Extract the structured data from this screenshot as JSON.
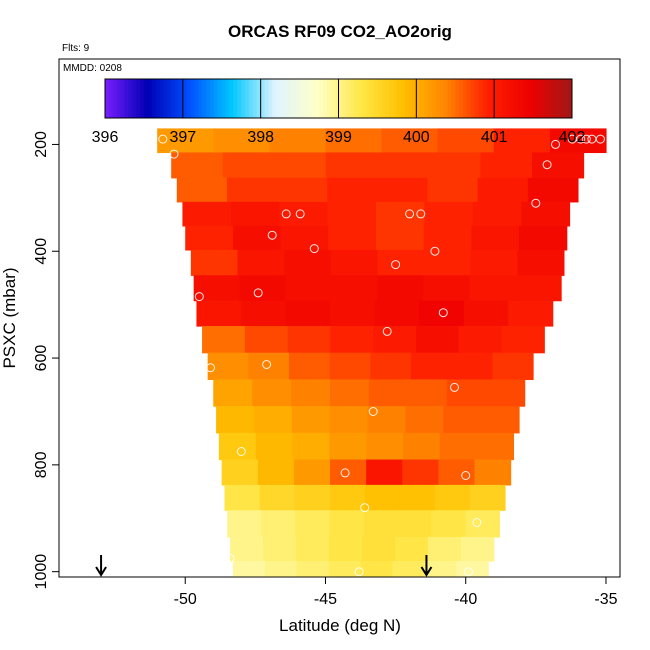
{
  "chart_data": {
    "type": "heatmap",
    "title": "ORCAS RF09 CO2_AO2orig",
    "flights_label": "Flts: 9",
    "date_label": "MMDD: 0208",
    "xlabel": "Latitude (deg N)",
    "ylabel": "PSXC (mbar)",
    "xlim": [
      -54.5,
      -34.5
    ],
    "ylim": [
      1010,
      40
    ],
    "xticks": [
      "-50",
      "-45",
      "-40",
      "-35"
    ],
    "yticks": [
      "200",
      "400",
      "600",
      "800",
      "1000"
    ],
    "colorbar": {
      "min": 396,
      "max": 402,
      "ticks": [
        "396",
        "397",
        "398",
        "399",
        "400",
        "401",
        "402"
      ],
      "colors": [
        "#7a1fff",
        "#0000b4",
        "#0050ff",
        "#00c8ff",
        "#dff4ff",
        "#ffffc8",
        "#ffe84a",
        "#ffc000",
        "#ff8800",
        "#ff2000",
        "#ee0000",
        "#a01818"
      ]
    },
    "layers": [
      {
        "p": 190,
        "lat_min": -51.0,
        "lat_max": -35.0,
        "values": [
          400.2,
          400.3,
          400.4,
          400.5,
          400.6,
          400.7,
          400.9,
          401.3
        ]
      },
      {
        "p": 240,
        "lat_min": -50.5,
        "lat_max": -35.8,
        "values": [
          400.6,
          400.7,
          400.7,
          400.8,
          400.8,
          400.8,
          400.9,
          401.2
        ]
      },
      {
        "p": 285,
        "lat_min": -50.3,
        "lat_max": -36.0,
        "values": [
          400.6,
          400.8,
          400.8,
          400.9,
          400.9,
          400.8,
          401.0,
          401.3
        ]
      },
      {
        "p": 330,
        "lat_min": -50.1,
        "lat_max": -36.3,
        "values": [
          401.0,
          401.1,
          401.0,
          400.9,
          400.8,
          400.9,
          401.0,
          401.2
        ]
      },
      {
        "p": 375,
        "lat_min": -50.0,
        "lat_max": -36.4,
        "values": [
          400.9,
          401.2,
          401.1,
          400.9,
          400.8,
          400.9,
          401.1,
          401.3
        ]
      },
      {
        "p": 420,
        "lat_min": -49.8,
        "lat_max": -36.5,
        "values": [
          400.8,
          401.1,
          401.2,
          401.1,
          400.9,
          400.9,
          401.0,
          401.2
        ]
      },
      {
        "p": 470,
        "lat_min": -49.7,
        "lat_max": -36.6,
        "values": [
          401.2,
          401.3,
          401.2,
          401.2,
          401.3,
          401.2,
          401.1,
          401.1
        ]
      },
      {
        "p": 515,
        "lat_min": -49.6,
        "lat_max": -36.9,
        "values": [
          401.1,
          401.2,
          401.3,
          401.2,
          401.3,
          401.4,
          401.2,
          401.0
        ]
      },
      {
        "p": 565,
        "lat_min": -49.4,
        "lat_max": -37.2,
        "values": [
          400.5,
          400.7,
          400.8,
          400.9,
          401.0,
          401.2,
          401.0,
          400.9
        ]
      },
      {
        "p": 615,
        "lat_min": -49.2,
        "lat_max": -37.6,
        "values": [
          400.3,
          400.4,
          400.6,
          400.7,
          400.8,
          400.9,
          400.9,
          400.8
        ]
      },
      {
        "p": 665,
        "lat_min": -49.0,
        "lat_max": -37.9,
        "values": [
          400.1,
          400.3,
          400.4,
          400.5,
          400.6,
          400.6,
          400.7,
          400.7
        ]
      },
      {
        "p": 715,
        "lat_min": -48.9,
        "lat_max": -38.1,
        "values": [
          399.9,
          400.0,
          400.2,
          400.3,
          400.4,
          400.5,
          400.6,
          400.6
        ]
      },
      {
        "p": 765,
        "lat_min": -48.8,
        "lat_max": -38.3,
        "values": [
          399.7,
          399.9,
          400.0,
          400.2,
          400.3,
          400.4,
          400.5,
          400.5
        ]
      },
      {
        "p": 815,
        "lat_min": -48.7,
        "lat_max": -38.4,
        "values": [
          399.6,
          399.9,
          400.2,
          400.6,
          401.1,
          400.8,
          400.6,
          400.4
        ]
      },
      {
        "p": 860,
        "lat_min": -48.6,
        "lat_max": -38.6,
        "values": [
          399.3,
          399.5,
          399.6,
          399.7,
          399.8,
          399.8,
          399.7,
          399.6
        ]
      },
      {
        "p": 910,
        "lat_min": -48.5,
        "lat_max": -38.8,
        "values": [
          399.0,
          399.1,
          399.2,
          399.3,
          399.4,
          399.4,
          399.3,
          399.2
        ]
      },
      {
        "p": 960,
        "lat_min": -48.4,
        "lat_max": -39.0,
        "values": [
          399.0,
          399.1,
          399.2,
          399.3,
          399.4,
          399.3,
          399.1,
          399.0
        ]
      },
      {
        "p": 1000,
        "lat_min": -48.3,
        "lat_max": -39.2,
        "values": [
          398.9,
          399.0,
          399.1,
          399.2,
          399.3,
          399.2,
          399.0,
          398.9
        ]
      }
    ],
    "observations": [
      {
        "lat": -50.8,
        "p": 190
      },
      {
        "lat": -50.4,
        "p": 218
      },
      {
        "lat": -36.8,
        "p": 200
      },
      {
        "lat": -36.2,
        "p": 190
      },
      {
        "lat": -35.7,
        "p": 190
      },
      {
        "lat": -35.5,
        "p": 190
      },
      {
        "lat": -35.2,
        "p": 190
      },
      {
        "lat": -35.9,
        "p": 190
      },
      {
        "lat": -37.1,
        "p": 238
      },
      {
        "lat": -37.5,
        "p": 310
      },
      {
        "lat": -46.4,
        "p": 330
      },
      {
        "lat": -45.9,
        "p": 330
      },
      {
        "lat": -42.0,
        "p": 330
      },
      {
        "lat": -41.6,
        "p": 330
      },
      {
        "lat": -46.9,
        "p": 370
      },
      {
        "lat": -45.4,
        "p": 395
      },
      {
        "lat": -41.1,
        "p": 400
      },
      {
        "lat": -42.5,
        "p": 425
      },
      {
        "lat": -47.4,
        "p": 478
      },
      {
        "lat": -49.5,
        "p": 485
      },
      {
        "lat": -40.8,
        "p": 515
      },
      {
        "lat": -42.8,
        "p": 550
      },
      {
        "lat": -47.1,
        "p": 612
      },
      {
        "lat": -49.1,
        "p": 618
      },
      {
        "lat": -40.4,
        "p": 655
      },
      {
        "lat": -43.3,
        "p": 700
      },
      {
        "lat": -48.0,
        "p": 775
      },
      {
        "lat": -44.3,
        "p": 815
      },
      {
        "lat": -40.0,
        "p": 820
      },
      {
        "lat": -43.6,
        "p": 880
      },
      {
        "lat": -39.6,
        "p": 908
      },
      {
        "lat": -48.4,
        "p": 975
      },
      {
        "lat": -43.8,
        "p": 1000
      },
      {
        "lat": -39.9,
        "p": 1000
      }
    ],
    "arrows": [
      {
        "lat": -53.0
      },
      {
        "lat": -41.4
      }
    ]
  }
}
